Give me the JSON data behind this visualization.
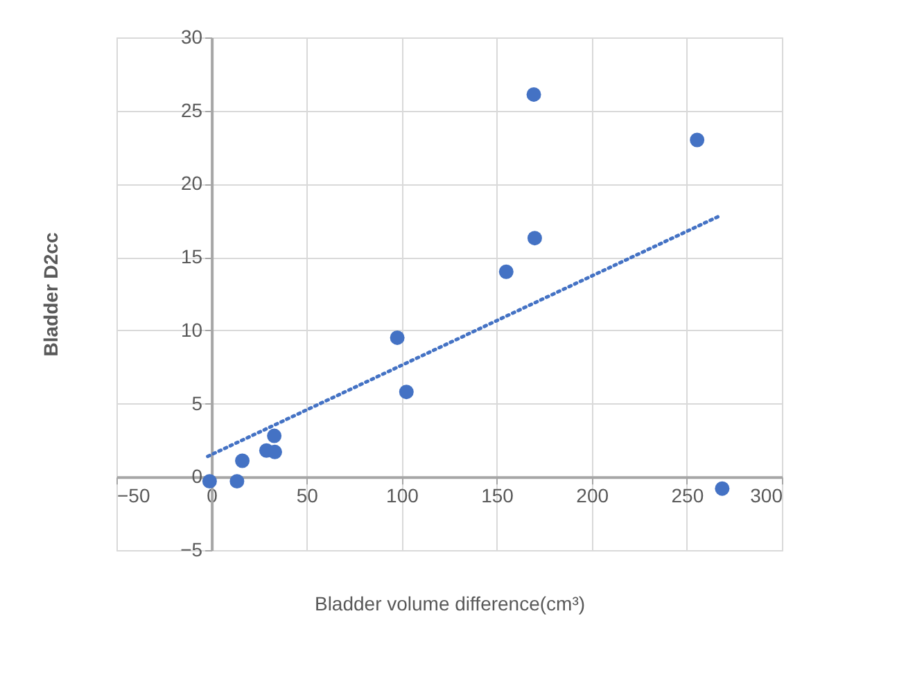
{
  "chart_data": {
    "type": "scatter",
    "xlabel": "Bladder volume difference(cm³)",
    "ylabel": "Bladder D2cc",
    "xlim": [
      -50,
      300
    ],
    "xticks": [
      -50,
      0,
      50,
      100,
      150,
      200,
      250,
      300
    ],
    "ylim": [
      -5,
      30
    ],
    "yticks": [
      -5,
      0,
      5,
      10,
      15,
      20,
      25,
      30
    ],
    "grid": true,
    "legend": false,
    "series": [
      {
        "color": "#4472c4",
        "marker": "circle",
        "x": [
          -1,
          13.4,
          16.2,
          28.9,
          33,
          33.3,
          97.7,
          102.5,
          155,
          169.5,
          170,
          255.4,
          268.6
        ],
        "values": [
          -0.3,
          -0.3,
          1.1,
          1.8,
          2.8,
          1.7,
          9.5,
          5.8,
          14.0,
          26.1,
          16.3,
          23.0,
          -0.8
        ]
      },
      {
        "type": "line",
        "color": "#4472c4",
        "line_style": "dotted",
        "marker": "none",
        "x": [
          -2,
          267
        ],
        "values": [
          1.4,
          17.8
        ]
      }
    ]
  }
}
